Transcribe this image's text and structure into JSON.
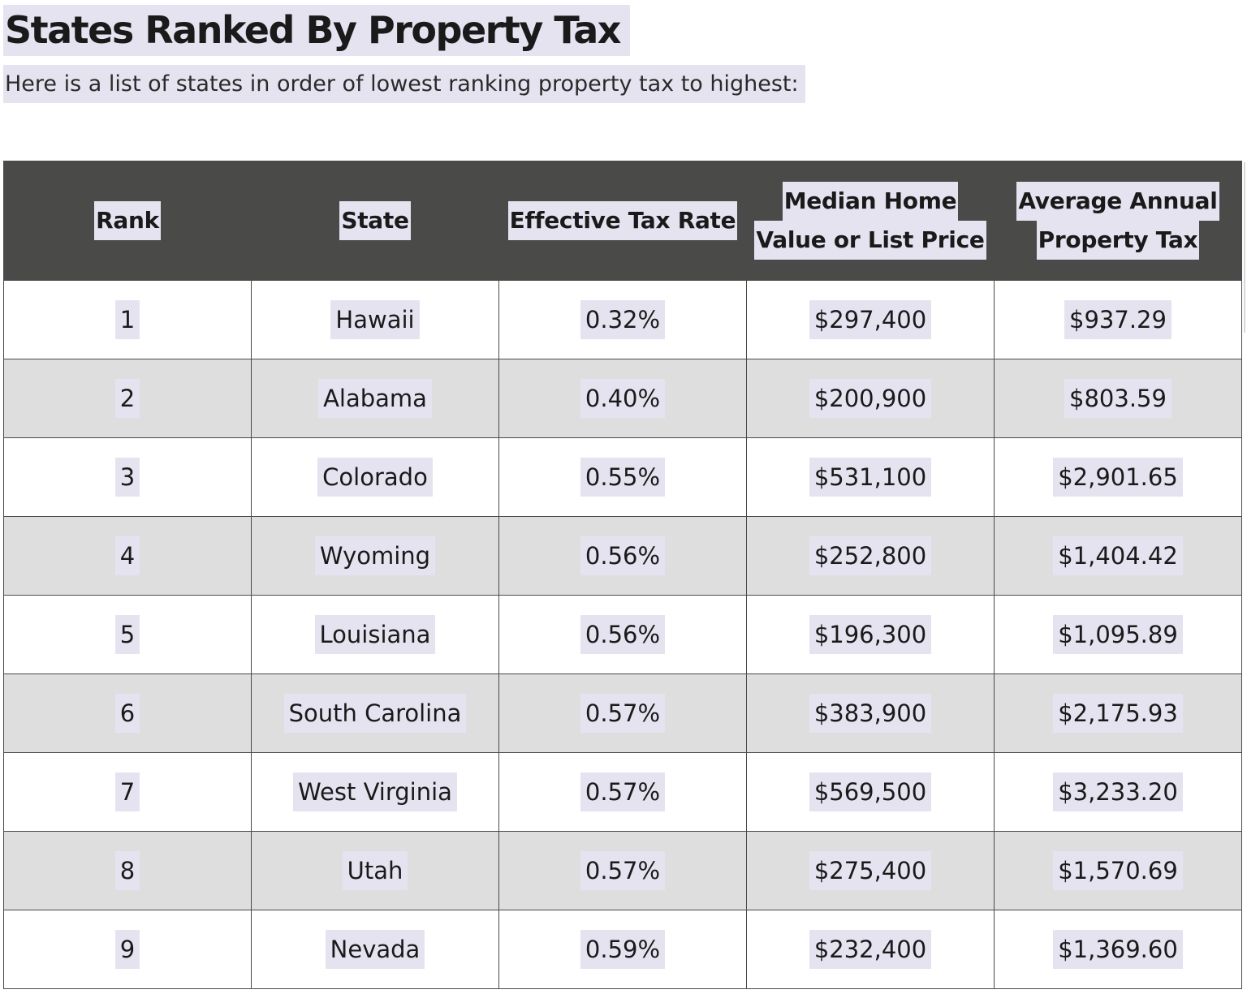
{
  "title": "States Ranked By Property Tax",
  "subtitle": "Here is a list of states in order of lowest ranking property tax to highest:",
  "table": {
    "headers": [
      [
        "Rank"
      ],
      [
        "State"
      ],
      [
        "Effective Tax Rate"
      ],
      [
        "Median Home",
        "Value or List Price"
      ],
      [
        "Average Annual",
        "Property Tax"
      ]
    ],
    "rows": [
      [
        "1",
        "Hawaii",
        "0.32%",
        "$297,400",
        "$937.29"
      ],
      [
        "2",
        "Alabama",
        "0.40%",
        "$200,900",
        "$803.59"
      ],
      [
        "3",
        "Colorado",
        "0.55%",
        "$531,100",
        "$2,901.65"
      ],
      [
        "4",
        "Wyoming",
        "0.56%",
        "$252,800",
        "$1,404.42"
      ],
      [
        "5",
        "Louisiana",
        "0.56%",
        "$196,300",
        "$1,095.89"
      ],
      [
        "6",
        "South Carolina",
        "0.57%",
        "$383,900",
        "$2,175.93"
      ],
      [
        "7",
        "West Virginia",
        "0.57%",
        "$569,500",
        "$3,233.20"
      ],
      [
        "8",
        "Utah",
        "0.57%",
        "$275,400",
        "$1,570.69"
      ],
      [
        "9",
        "Nevada",
        "0.59%",
        "$232,400",
        "$1,369.60"
      ]
    ]
  },
  "colors": {
    "header_bg": "#4a4a49",
    "highlight": "#e6e3f1",
    "alt_row": "#dedede",
    "border": "#4a4a4a"
  }
}
